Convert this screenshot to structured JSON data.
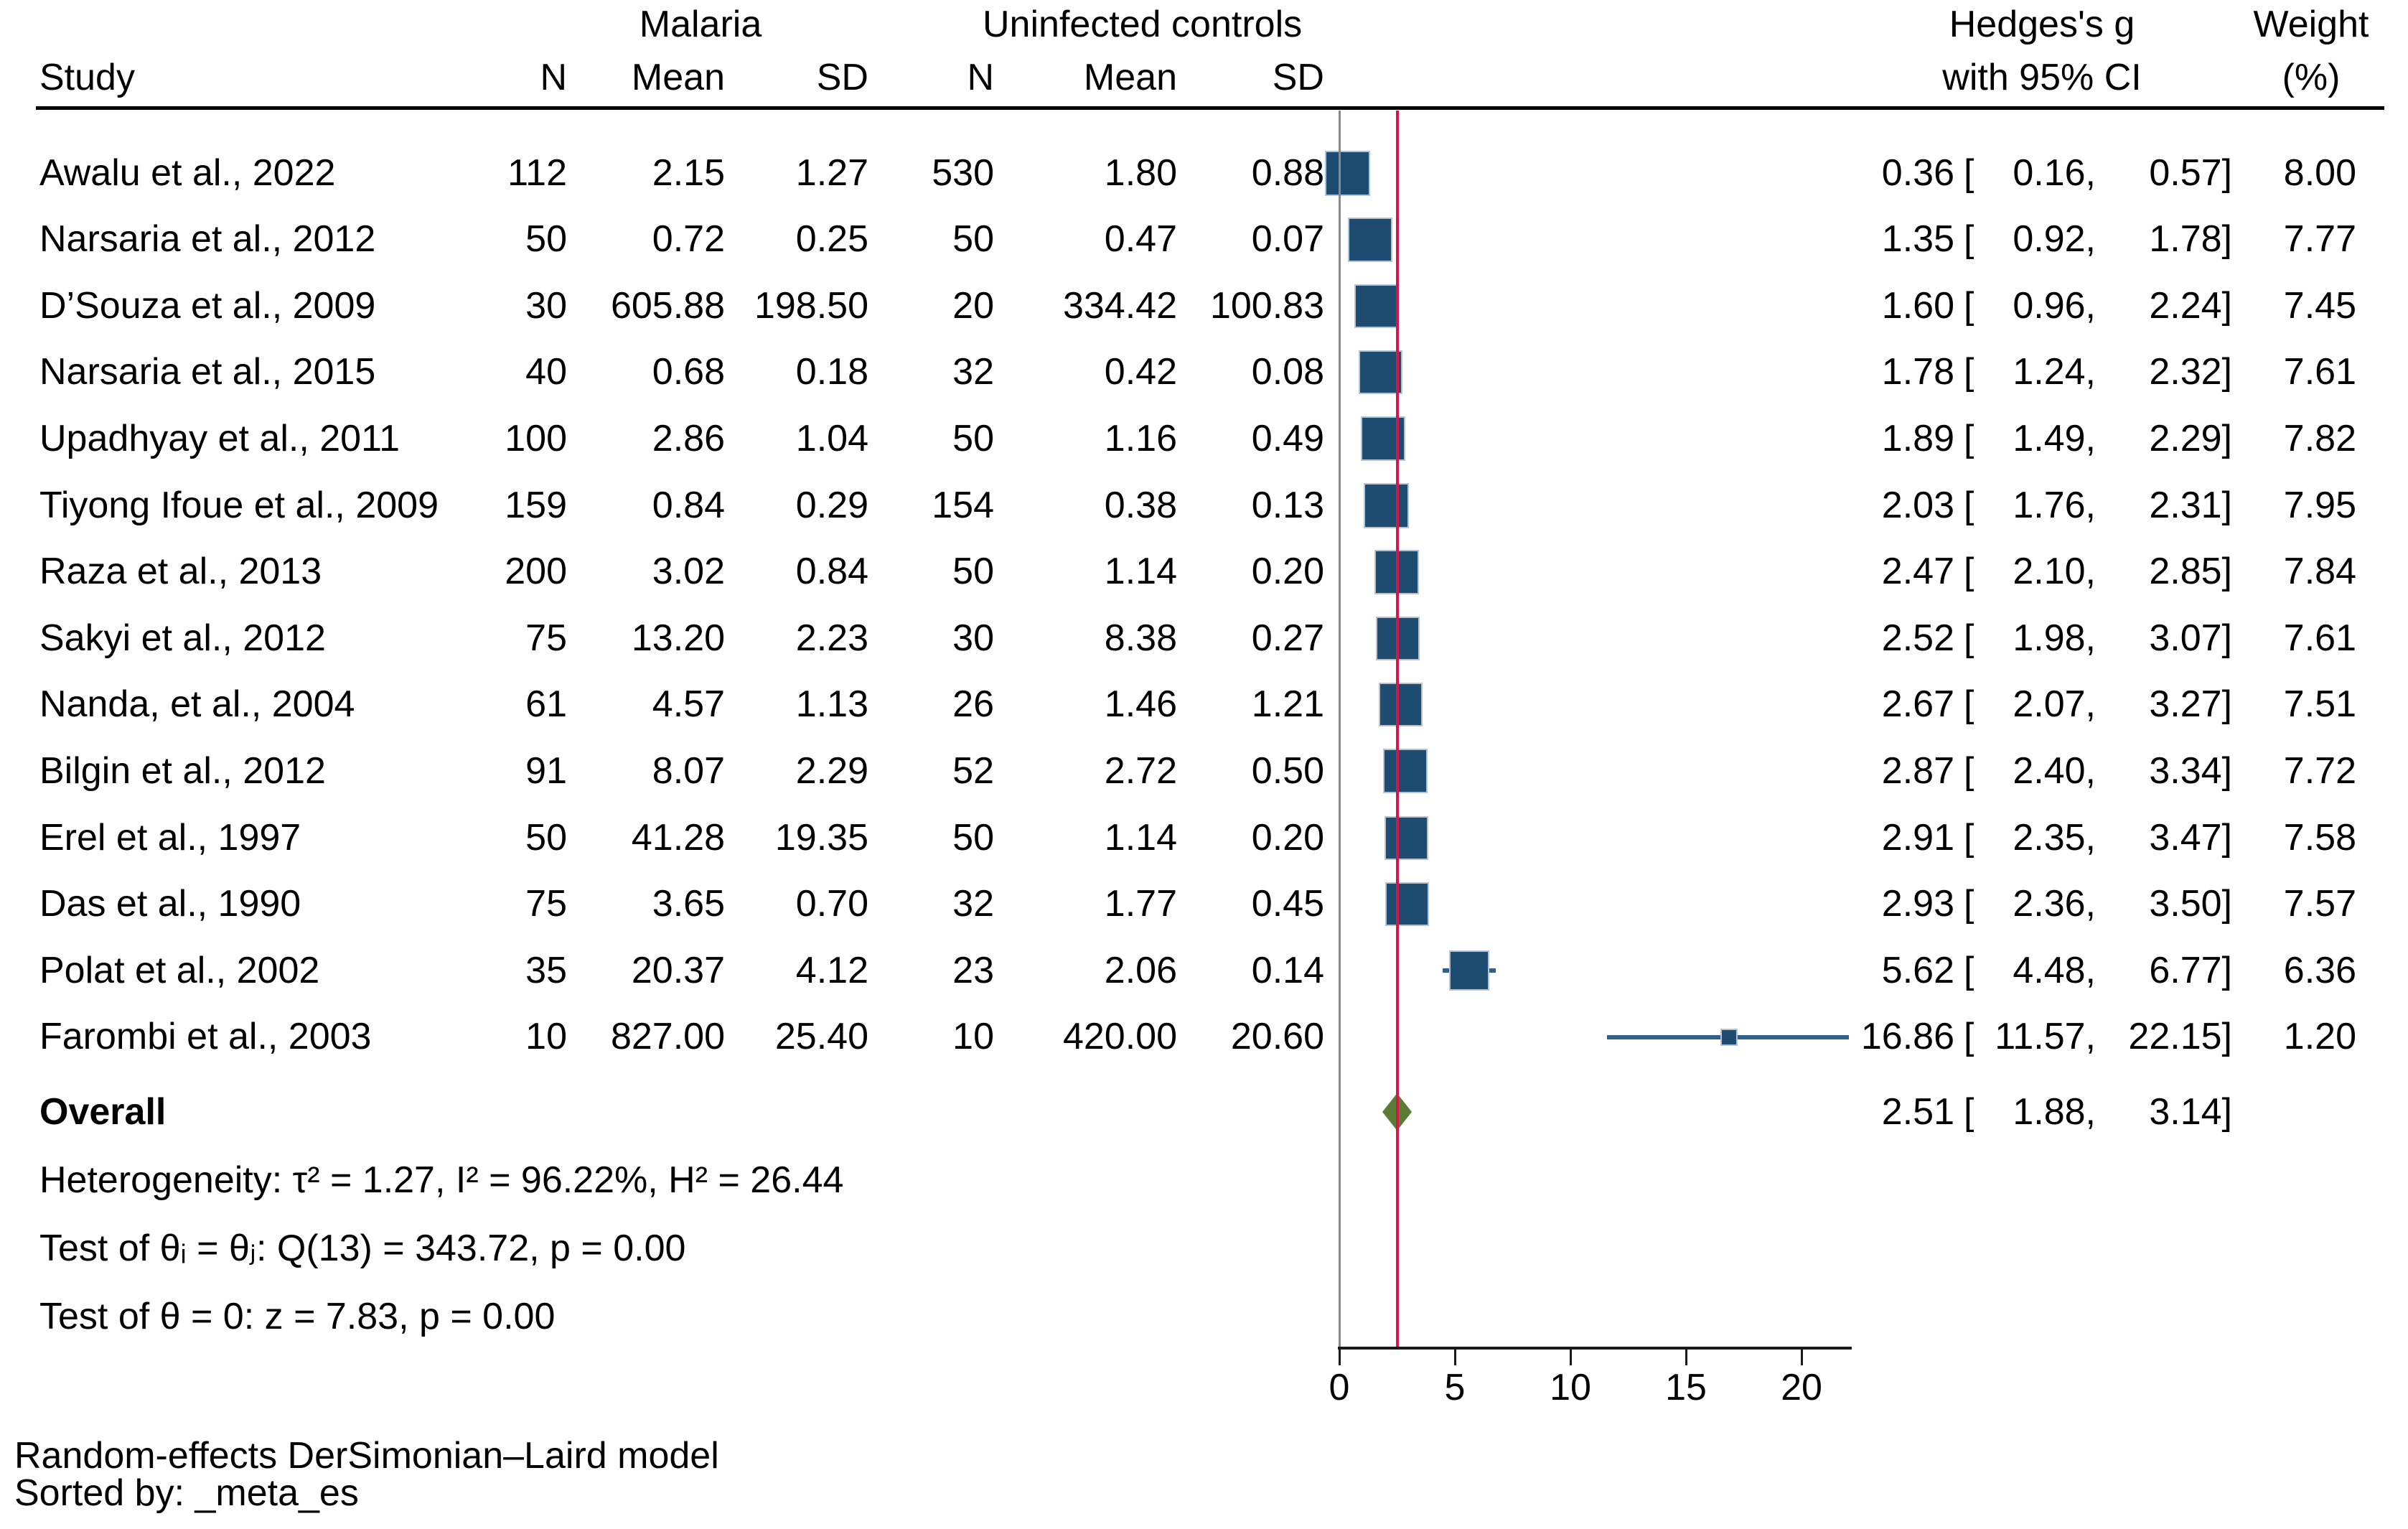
{
  "header": {
    "study": "Study",
    "malaria_group": "Malaria",
    "controls_group": "Uninfected controls",
    "n": "N",
    "mean": "Mean",
    "sd": "SD",
    "effect_line1": "Hedges's g",
    "effect_line2": "with 95% CI",
    "weight_line1": "Weight",
    "weight_line2": "(%)"
  },
  "punct": {
    "open": "[",
    "comma": ",",
    "close": "]"
  },
  "studies": [
    {
      "name": "Awalu et al., 2022",
      "n": "112",
      "mean": "2.15",
      "sd": "1.27",
      "c_n": "530",
      "c_mean": "1.80",
      "c_sd": "0.88",
      "es": "0.36",
      "lo": "0.16",
      "hi": "0.57",
      "weight": "8.00"
    },
    {
      "name": "Narsaria et al., 2012",
      "n": "50",
      "mean": "0.72",
      "sd": "0.25",
      "c_n": "50",
      "c_mean": "0.47",
      "c_sd": "0.07",
      "es": "1.35",
      "lo": "0.92",
      "hi": "1.78",
      "weight": "7.77"
    },
    {
      "name": "D’Souza et al., 2009",
      "n": "30",
      "mean": "605.88",
      "sd": "198.50",
      "c_n": "20",
      "c_mean": "334.42",
      "c_sd": "100.83",
      "es": "1.60",
      "lo": "0.96",
      "hi": "2.24",
      "weight": "7.45"
    },
    {
      "name": "Narsaria et al., 2015",
      "n": "40",
      "mean": "0.68",
      "sd": "0.18",
      "c_n": "32",
      "c_mean": "0.42",
      "c_sd": "0.08",
      "es": "1.78",
      "lo": "1.24",
      "hi": "2.32",
      "weight": "7.61"
    },
    {
      "name": "Upadhyay et al., 2011",
      "n": "100",
      "mean": "2.86",
      "sd": "1.04",
      "c_n": "50",
      "c_mean": "1.16",
      "c_sd": "0.49",
      "es": "1.89",
      "lo": "1.49",
      "hi": "2.29",
      "weight": "7.82"
    },
    {
      "name": "Tiyong Ifoue et al., 2009",
      "n": "159",
      "mean": "0.84",
      "sd": "0.29",
      "c_n": "154",
      "c_mean": "0.38",
      "c_sd": "0.13",
      "es": "2.03",
      "lo": "1.76",
      "hi": "2.31",
      "weight": "7.95"
    },
    {
      "name": "Raza et al., 2013",
      "n": "200",
      "mean": "3.02",
      "sd": "0.84",
      "c_n": "50",
      "c_mean": "1.14",
      "c_sd": "0.20",
      "es": "2.47",
      "lo": "2.10",
      "hi": "2.85",
      "weight": "7.84"
    },
    {
      "name": "Sakyi et al., 2012",
      "n": "75",
      "mean": "13.20",
      "sd": "2.23",
      "c_n": "30",
      "c_mean": "8.38",
      "c_sd": "0.27",
      "es": "2.52",
      "lo": "1.98",
      "hi": "3.07",
      "weight": "7.61"
    },
    {
      "name": "Nanda, et al., 2004",
      "n": "61",
      "mean": "4.57",
      "sd": "1.13",
      "c_n": "26",
      "c_mean": "1.46",
      "c_sd": "1.21",
      "es": "2.67",
      "lo": "2.07",
      "hi": "3.27",
      "weight": "7.51"
    },
    {
      "name": "Bilgin et al., 2012",
      "n": "91",
      "mean": "8.07",
      "sd": "2.29",
      "c_n": "52",
      "c_mean": "2.72",
      "c_sd": "0.50",
      "es": "2.87",
      "lo": "2.40",
      "hi": "3.34",
      "weight": "7.72"
    },
    {
      "name": "Erel et al., 1997",
      "n": "50",
      "mean": "41.28",
      "sd": "19.35",
      "c_n": "50",
      "c_mean": "1.14",
      "c_sd": "0.20",
      "es": "2.91",
      "lo": "2.35",
      "hi": "3.47",
      "weight": "7.58"
    },
    {
      "name": "Das et al., 1990",
      "n": "75",
      "mean": "3.65",
      "sd": "0.70",
      "c_n": "32",
      "c_mean": "1.77",
      "c_sd": "0.45",
      "es": "2.93",
      "lo": "2.36",
      "hi": "3.50",
      "weight": "7.57"
    },
    {
      "name": "Polat et al., 2002",
      "n": "35",
      "mean": "20.37",
      "sd": "4.12",
      "c_n": "23",
      "c_mean": "2.06",
      "c_sd": "0.14",
      "es": "5.62",
      "lo": "4.48",
      "hi": "6.77",
      "weight": "6.36"
    },
    {
      "name": "Farombi et al., 2003",
      "n": "10",
      "mean": "827.00",
      "sd": "25.40",
      "c_n": "10",
      "c_mean": "420.00",
      "c_sd": "20.60",
      "es": "16.86",
      "lo": "11.57",
      "hi": "22.15",
      "weight": "1.20"
    }
  ],
  "overall": {
    "label": "Overall",
    "es": "2.51",
    "lo": "1.88",
    "hi": "3.14"
  },
  "stats": {
    "heterogeneity": "Heterogeneity: τ² = 1.27, I² = 96.22%, H² = 26.44",
    "test_group": "Test of θᵢ = θⱼ: Q(13) = 343.72, p = 0.00",
    "test_zero": "Test of θ = 0: z = 7.83, p = 0.00"
  },
  "axis": {
    "ticks": [
      "0",
      "5",
      "10",
      "15",
      "20"
    ]
  },
  "footer": {
    "model": "Random-effects DerSimonian–Laird model",
    "sorted": "Sorted by: _meta_es"
  },
  "colors": {
    "marker": "#1e4c70",
    "marker_edge": "#b7c3d1",
    "whisker": "#2e5f8d",
    "overall_line": "#d6164b",
    "diamond": "#5b7c34",
    "zero_line": "#8a8a8a",
    "axis_line": "#1a1a1a"
  },
  "chart_data": {
    "type": "scatter",
    "subtype": "forest_plot_meta_analysis",
    "title": "",
    "xlabel": "Hedges's g",
    "ylabel": "",
    "xlim": [
      0,
      22.2
    ],
    "x_ticks": [
      0,
      5,
      10,
      15,
      20
    ],
    "grid": false,
    "legend_position": "none",
    "reference_line_x": 0,
    "overall_line_x": 2.51,
    "studies": [
      "Awalu et al., 2022",
      "Narsaria et al., 2012",
      "D’Souza et al., 2009",
      "Narsaria et al., 2015",
      "Upadhyay et al., 2011",
      "Tiyong Ifoue et al., 2009",
      "Raza et al., 2013",
      "Sakyi et al., 2012",
      "Nanda, et al., 2004",
      "Bilgin et al., 2012",
      "Erel et al., 1997",
      "Das et al., 1990",
      "Polat et al., 2002",
      "Farombi et al., 2003"
    ],
    "malaria_n": [
      112,
      50,
      30,
      40,
      100,
      159,
      200,
      75,
      61,
      91,
      50,
      75,
      35,
      10
    ],
    "malaria_mean": [
      2.15,
      0.72,
      605.88,
      0.68,
      2.86,
      0.84,
      3.02,
      13.2,
      4.57,
      8.07,
      41.28,
      3.65,
      20.37,
      827.0
    ],
    "malaria_sd": [
      1.27,
      0.25,
      198.5,
      0.18,
      1.04,
      0.29,
      0.84,
      2.23,
      1.13,
      2.29,
      19.35,
      0.7,
      4.12,
      25.4
    ],
    "control_n": [
      530,
      50,
      20,
      32,
      50,
      154,
      50,
      30,
      26,
      52,
      50,
      32,
      23,
      10
    ],
    "control_mean": [
      1.8,
      0.47,
      334.42,
      0.42,
      1.16,
      0.38,
      1.14,
      8.38,
      1.46,
      2.72,
      1.14,
      1.77,
      2.06,
      420.0
    ],
    "control_sd": [
      0.88,
      0.07,
      100.83,
      0.08,
      0.49,
      0.13,
      0.2,
      0.27,
      1.21,
      0.5,
      0.2,
      0.45,
      0.14,
      20.6
    ],
    "hedges_g": [
      0.36,
      1.35,
      1.6,
      1.78,
      1.89,
      2.03,
      2.47,
      2.52,
      2.67,
      2.87,
      2.91,
      2.93,
      5.62,
      16.86
    ],
    "ci_low": [
      0.16,
      0.92,
      0.96,
      1.24,
      1.49,
      1.76,
      2.1,
      1.98,
      2.07,
      2.4,
      2.35,
      2.36,
      4.48,
      11.57
    ],
    "ci_high": [
      0.57,
      1.78,
      2.24,
      2.32,
      2.29,
      2.31,
      2.85,
      3.07,
      3.27,
      3.34,
      3.47,
      3.5,
      6.77,
      22.15
    ],
    "weight_pct": [
      8.0,
      7.77,
      7.45,
      7.61,
      7.82,
      7.95,
      7.84,
      7.61,
      7.51,
      7.72,
      7.58,
      7.57,
      6.36,
      1.2
    ],
    "overall": {
      "hedges_g": 2.51,
      "ci_low": 1.88,
      "ci_high": 3.14
    },
    "heterogeneity": {
      "tau2": 1.27,
      "I2_pct": 96.22,
      "H2": 26.44
    },
    "test_homogeneity": {
      "Q": 343.72,
      "df": 13,
      "p": 0.0
    },
    "test_zero": {
      "z": 7.83,
      "p": 0.0
    },
    "model": "Random-effects DerSimonian–Laird",
    "sorted_by": "_meta_es"
  }
}
